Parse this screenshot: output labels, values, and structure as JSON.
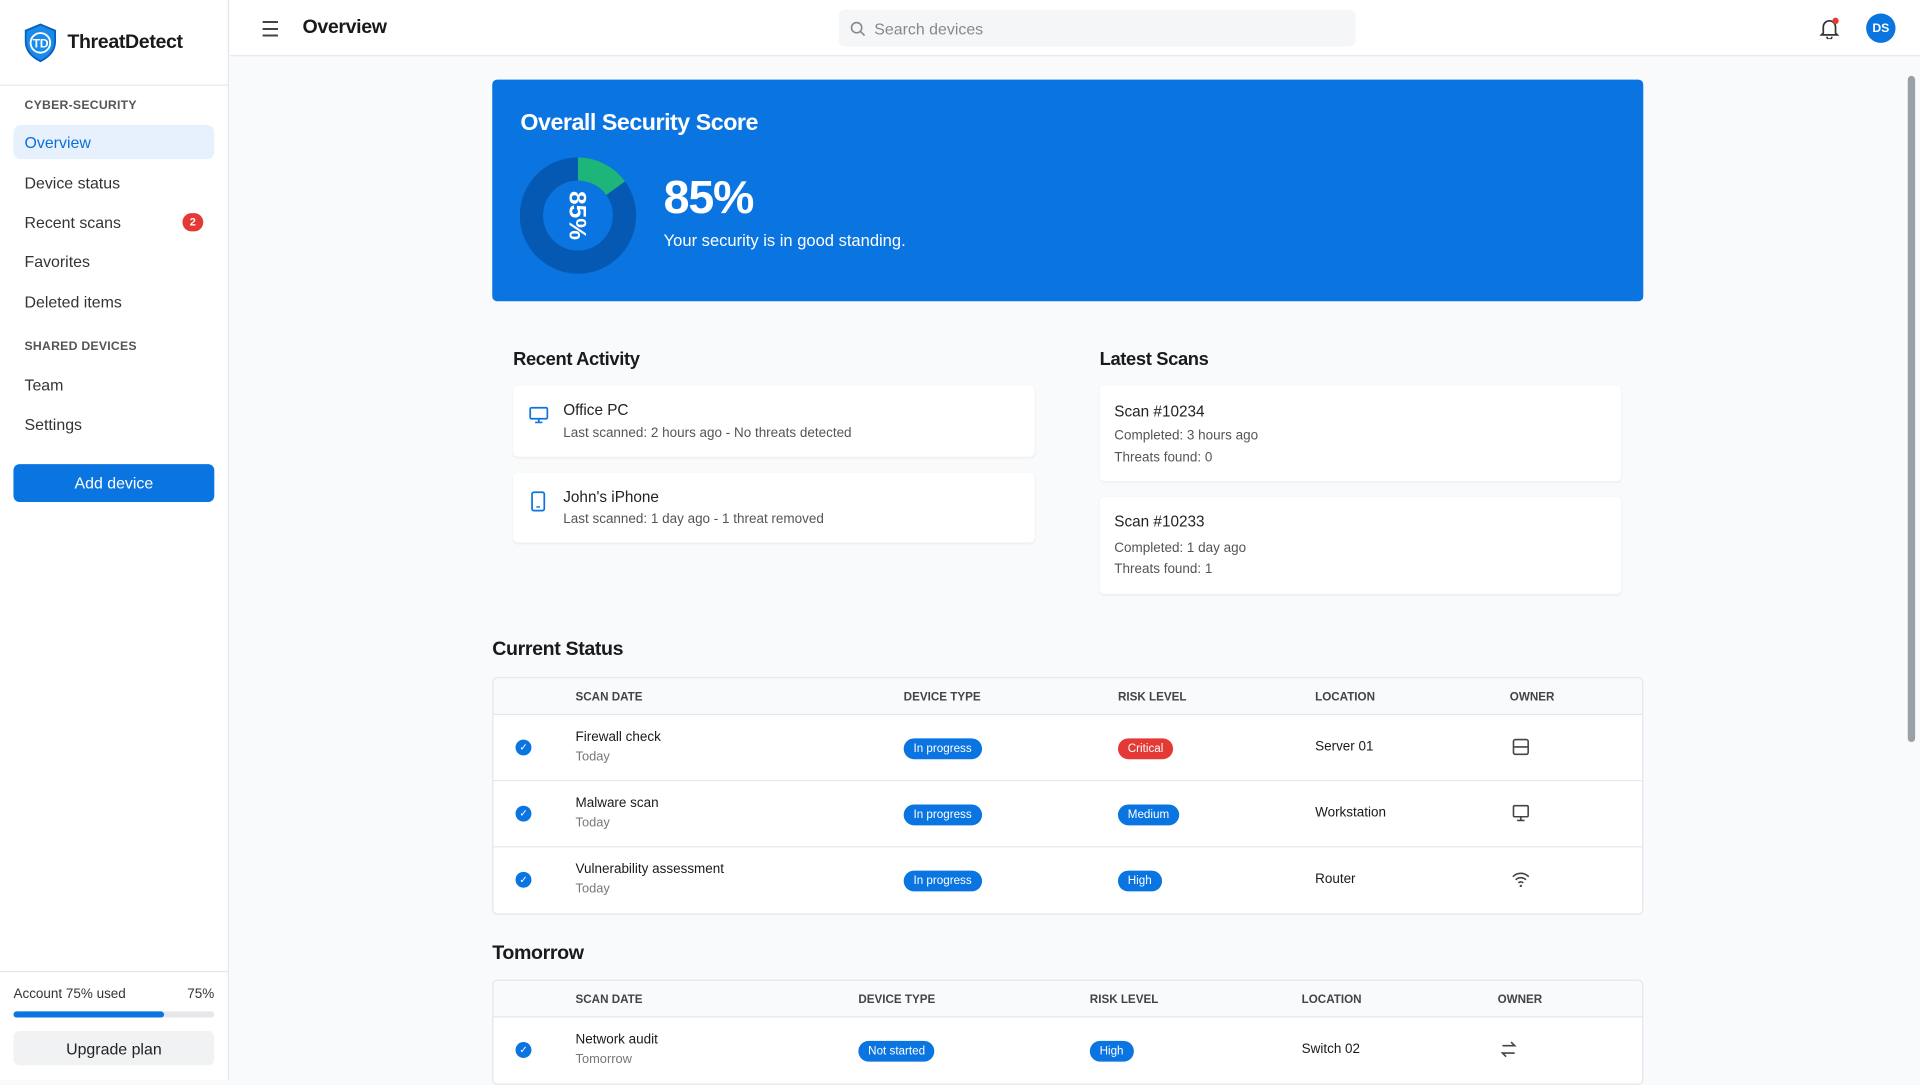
{
  "app": {
    "name": "ThreatDetect",
    "logo_text": "TD"
  },
  "sidebar": {
    "section1": "CYBER-SECURITY",
    "items": [
      {
        "label": "Overview",
        "active": true
      },
      {
        "label": "Device status"
      },
      {
        "label": "Recent scans",
        "badge": "2"
      },
      {
        "label": "Favorites"
      },
      {
        "label": "Deleted items"
      }
    ],
    "section2": "SHARED DEVICES",
    "items2": [
      {
        "label": "Team"
      },
      {
        "label": "Settings"
      }
    ],
    "add_device": "Add device",
    "account": {
      "label": "Account 75% used",
      "value": "75%",
      "fraction": 0.75
    },
    "upgrade": "Upgrade plan"
  },
  "header": {
    "title": "Overview",
    "search_placeholder": "Search devices",
    "avatar": "DS",
    "notification_dot": true
  },
  "score": {
    "title": "Overall Security Score",
    "value": 85,
    "ring_label": "85%",
    "big": "85%",
    "message": "Your security is in good standing.",
    "colors": {
      "ring": "#0559b3",
      "fill": "#1db57a",
      "bg": "#0a74e0"
    }
  },
  "recent_activity": {
    "title": "Recent Activity",
    "items": [
      {
        "icon": "monitor-icon",
        "name": "Office PC",
        "detail": "Last scanned: 2 hours ago - No threats detected"
      },
      {
        "icon": "phone-icon",
        "name": "John's iPhone",
        "detail": "Last scanned: 1 day ago - 1 threat removed"
      }
    ]
  },
  "latest_scans": {
    "title": "Latest Scans",
    "items": [
      {
        "name": "Scan #10234",
        "completed": "Completed: 3 hours ago",
        "threats": "Threats found: 0"
      },
      {
        "name": "Scan #10233",
        "completed": "Completed: 1 day ago",
        "threats": "Threats found: 1"
      }
    ]
  },
  "current_status": {
    "title": "Current Status",
    "columns": [
      "SCAN DATE",
      "DEVICE TYPE",
      "RISK LEVEL",
      "LOCATION",
      "OWNER"
    ],
    "rows": [
      {
        "name": "Firewall check",
        "date": "Today",
        "status": "In progress",
        "risk": "Critical",
        "location": "Server 01",
        "icon": "server-icon"
      },
      {
        "name": "Malware scan",
        "date": "Today",
        "status": "In progress",
        "risk": "Medium",
        "location": "Workstation",
        "icon": "monitor-icon"
      },
      {
        "name": "Vulnerability assessment",
        "date": "Today",
        "status": "In progress",
        "risk": "High",
        "location": "Router",
        "icon": "wifi-icon"
      }
    ]
  },
  "tomorrow": {
    "title": "Tomorrow",
    "columns": [
      "SCAN DATE",
      "DEVICE TYPE",
      "RISK LEVEL",
      "LOCATION",
      "OWNER"
    ],
    "rows": [
      {
        "name": "Network audit",
        "date": "Tomorrow",
        "status": "Not started",
        "risk": "High",
        "location": "Switch 02",
        "icon": "switch-icon"
      }
    ]
  }
}
